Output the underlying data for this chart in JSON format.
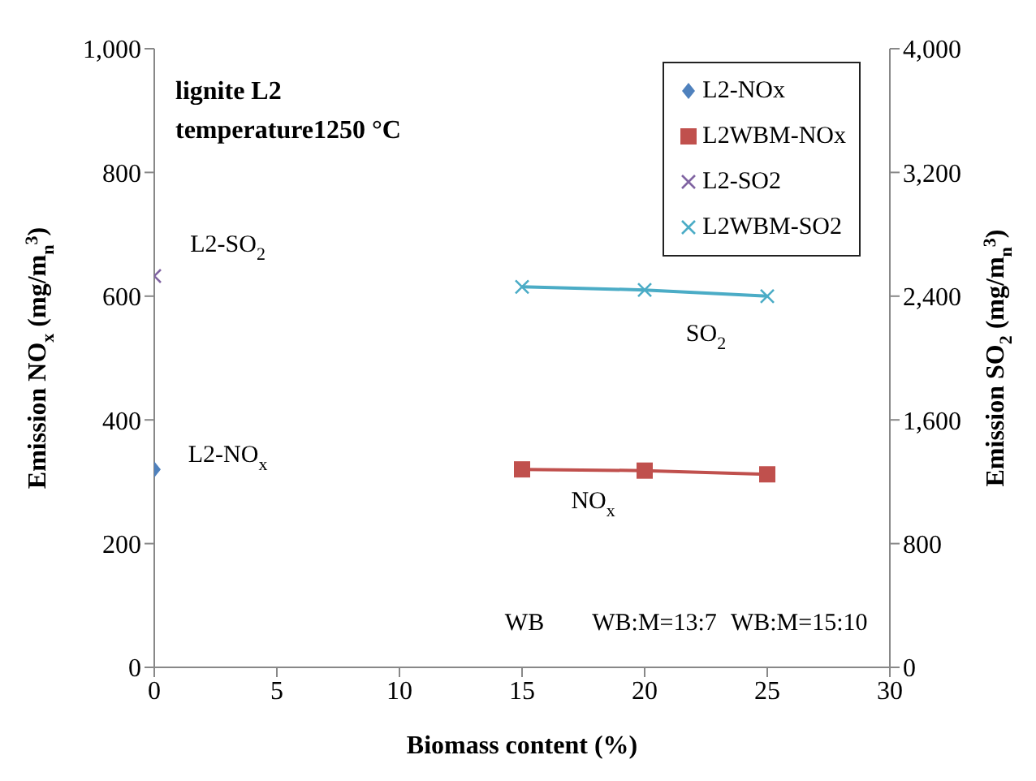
{
  "chart_data": {
    "type": "scatter",
    "xlabel": "Biomass content (%)",
    "ylabel": "Emission NO$_{x}$ (mg/m$_{n}$$^{3}$)",
    "y2label": "Emission SO$_{2}$ (mg/m$_{n}$$^{3}$)",
    "xlim": [
      0,
      30
    ],
    "xticks": [
      0,
      5,
      10,
      15,
      20,
      25,
      30
    ],
    "ylim": [
      0,
      1000
    ],
    "yticks": [
      0,
      200,
      400,
      600,
      800,
      {
        "value": 1000,
        "label": "1,000"
      }
    ],
    "y2lim": [
      0,
      4000
    ],
    "y2ticks": [
      0,
      800,
      {
        "value": 1600,
        "label": "1,600"
      },
      {
        "value": 2400,
        "label": "2,400"
      },
      {
        "value": 3200,
        "label": "3,200"
      },
      {
        "value": 4000,
        "label": "4,000"
      }
    ],
    "series": [
      {
        "name": "L2-NOx",
        "marker": "diamond",
        "color": "#4f81bd",
        "x": [
          0
        ],
        "values": [
          320
        ]
      },
      {
        "name": "L2WBM-NOx",
        "type": "line",
        "marker": "square",
        "color": "#c0504d",
        "x": [
          15,
          20,
          25
        ],
        "values": [
          320,
          318,
          312
        ]
      },
      {
        "name": "L2-SO2",
        "marker": "cross",
        "color": "#8064a2",
        "axis": "y2",
        "x": [
          0
        ],
        "values": [
          2530
        ]
      },
      {
        "name": "L2WBM-SO2",
        "type": "line",
        "marker": "cross",
        "color": "#4bacc6",
        "axis": "y2",
        "x": [
          15,
          20,
          25
        ],
        "values": [
          2460,
          2440,
          2400
        ]
      }
    ],
    "annotations": [
      "lignite L2",
      "temperature1250 °C",
      "L2-SO$_{2}$",
      "L2-NO$_{x}$",
      "SO$_{2}$",
      "NO$_{x}$",
      "WB",
      "WB:M=13:7",
      "WB:M=15:10"
    ],
    "legend": "top right",
    "grid": false
  }
}
